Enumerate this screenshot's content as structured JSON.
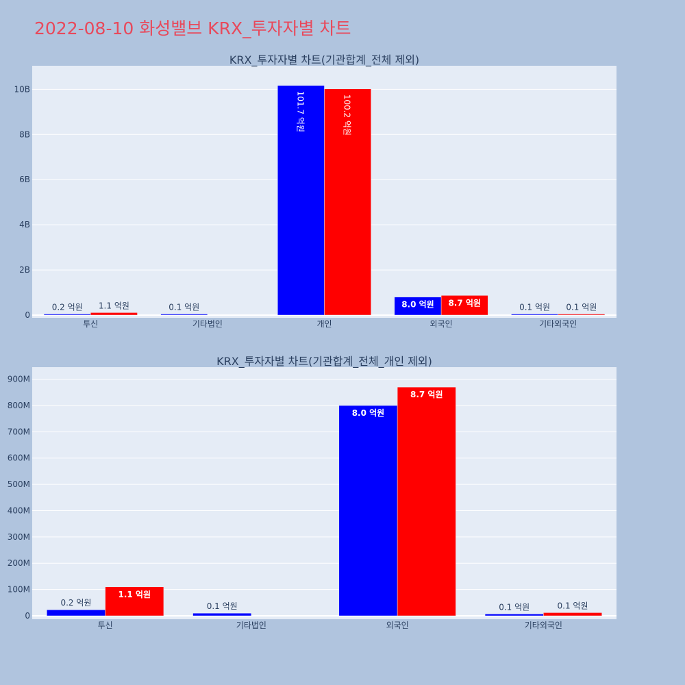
{
  "page": {
    "title": "2022-08-10 화성밸브 KRX_투자자별 차트"
  },
  "colors": {
    "background": "#b0c4de",
    "plot_bg": "#e5ecf6",
    "grid": "#ffffff",
    "series1": "#0000ff",
    "series2": "#ff0000",
    "title": "#e8495b",
    "text": "#2a3f5f"
  },
  "chart_data": [
    {
      "type": "bar",
      "title": "KRX_투자자별 차트(기관합계_전체 제외)",
      "categories": [
        "투신",
        "기타법인",
        "개인",
        "외국인",
        "기타외국인"
      ],
      "ylim": [
        0,
        10800000000
      ],
      "yticks": [
        0,
        2000000000,
        4000000000,
        6000000000,
        8000000000,
        10000000000
      ],
      "ytick_labels": [
        "0",
        "2B",
        "4B",
        "6B",
        "8B",
        "10B"
      ],
      "grid": true,
      "series": [
        {
          "values": [
            20000000,
            10000000,
            10170000000,
            800000000,
            10000000
          ],
          "labels": [
            "0.2 억원",
            "0.1 억원",
            "101.7 억원",
            "8.0 억원",
            "0.1 억원"
          ]
        },
        {
          "values": [
            110000000,
            0,
            10020000000,
            870000000,
            10000000
          ],
          "labels": [
            "1.1 억원",
            "",
            "100.2 억원",
            "8.7 억원",
            "0.1 억원"
          ]
        }
      ]
    },
    {
      "type": "bar",
      "title": "KRX_투자자별 차트(기관합계_전체_개인 제외)",
      "categories": [
        "투신",
        "기타법인",
        "외국인",
        "기타외국인"
      ],
      "ylim": [
        0,
        925000000
      ],
      "yticks": [
        0,
        100000000,
        200000000,
        300000000,
        400000000,
        500000000,
        600000000,
        700000000,
        800000000,
        900000000
      ],
      "ytick_labels": [
        "0",
        "100M",
        "200M",
        "300M",
        "400M",
        "500M",
        "600M",
        "700M",
        "800M",
        "900M"
      ],
      "grid": true,
      "series": [
        {
          "values": [
            23000000,
            10000000,
            800000000,
            7000000
          ],
          "labels": [
            "0.2 억원",
            "0.1 억원",
            "8.0 억원",
            "0.1 억원"
          ]
        },
        {
          "values": [
            110000000,
            0,
            870000000,
            12000000
          ],
          "labels": [
            "1.1 억원",
            "",
            "8.7 억원",
            "0.1 억원"
          ]
        }
      ]
    }
  ]
}
